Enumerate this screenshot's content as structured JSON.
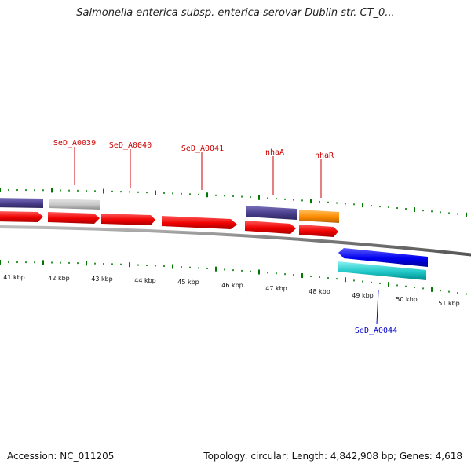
{
  "title": "Salmonella enterica subsp. enterica serovar Dublin str. CT_0...",
  "footer": {
    "accession": "Accession: NC_011205",
    "summary": "Topology: circular; Length: 4,842,908 bp; Genes: 4,618"
  },
  "colors": {
    "gene_red": "#ff0000",
    "gene_slate": "#483d8b",
    "gene_gray": "#c8c8c8",
    "gene_orange": "#ff8c00",
    "gene_blue": "#0000ee",
    "gene_cyan": "#00cccc",
    "tick_green": "#007700",
    "label_red": "#cc0000",
    "label_blue": "#0000cc",
    "backbone": "#888888"
  },
  "kbp_labels": [
    "41 kbp",
    "42 kbp",
    "43 kbp",
    "44 kbp",
    "45 kbp",
    "46 kbp",
    "47 kbp",
    "48 kbp",
    "49 kbp",
    "50 kbp",
    "51 kbp"
  ],
  "gene_labels": {
    "sed_a0039": "SeD_A0039",
    "sed_a0040": "SeD_A0040",
    "sed_a0041": "SeD_A0041",
    "nhaa": "nhaA",
    "nhar": "nhaR",
    "sed_a0044": "SeD_A0044"
  }
}
